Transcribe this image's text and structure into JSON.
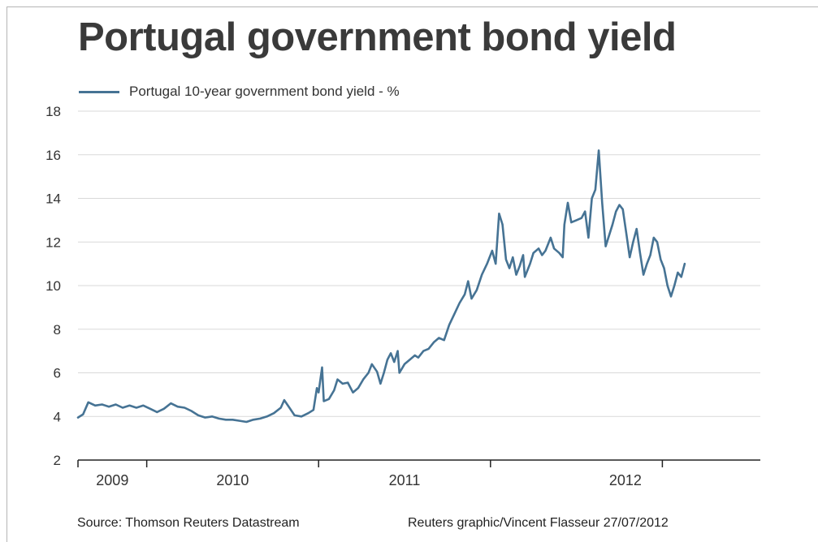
{
  "title": "Portugal government bond yield",
  "footer": {
    "source": "Source: Thomson Reuters Datastream",
    "credit": "Reuters graphic/Vincent Flasseur 27/07/2012"
  },
  "colors": {
    "line": "#467394",
    "grid": "#d9d9d9",
    "axis": "#333333"
  },
  "chart_data": {
    "type": "line",
    "title": "Portugal government bond yield",
    "xlabel": "",
    "ylabel": "",
    "ylim": [
      2,
      18
    ],
    "y_ticks": [
      2,
      4,
      6,
      8,
      10,
      12,
      14,
      16,
      18
    ],
    "x_range": [
      2008.6,
      2012.57
    ],
    "x_tick_labels": [
      "2009",
      "2010",
      "2011",
      "2012"
    ],
    "grid": true,
    "legend": "top-left",
    "series": [
      {
        "name": "Portugal 10-year government bond yield - %",
        "points": [
          [
            2008.6,
            3.95
          ],
          [
            2008.63,
            4.1
          ],
          [
            2008.66,
            4.65
          ],
          [
            2008.7,
            4.5
          ],
          [
            2008.74,
            4.55
          ],
          [
            2008.78,
            4.45
          ],
          [
            2008.82,
            4.55
          ],
          [
            2008.86,
            4.4
          ],
          [
            2008.9,
            4.5
          ],
          [
            2008.94,
            4.4
          ],
          [
            2008.98,
            4.5
          ],
          [
            2009.02,
            4.35
          ],
          [
            2009.06,
            4.2
          ],
          [
            2009.1,
            4.35
          ],
          [
            2009.14,
            4.6
          ],
          [
            2009.18,
            4.45
          ],
          [
            2009.22,
            4.4
          ],
          [
            2009.26,
            4.25
          ],
          [
            2009.3,
            4.05
          ],
          [
            2009.34,
            3.95
          ],
          [
            2009.38,
            4.0
          ],
          [
            2009.42,
            3.9
          ],
          [
            2009.46,
            3.85
          ],
          [
            2009.5,
            3.85
          ],
          [
            2009.54,
            3.8
          ],
          [
            2009.58,
            3.75
          ],
          [
            2009.62,
            3.85
          ],
          [
            2009.66,
            3.9
          ],
          [
            2009.7,
            4.0
          ],
          [
            2009.74,
            4.15
          ],
          [
            2009.78,
            4.4
          ],
          [
            2009.8,
            4.75
          ],
          [
            2009.83,
            4.4
          ],
          [
            2009.86,
            4.05
          ],
          [
            2009.9,
            4.0
          ],
          [
            2009.94,
            4.15
          ],
          [
            2009.97,
            4.3
          ],
          [
            2009.99,
            5.3
          ],
          [
            2010.0,
            5.1
          ],
          [
            2010.02,
            6.25
          ],
          [
            2010.03,
            4.7
          ],
          [
            2010.06,
            4.8
          ],
          [
            2010.09,
            5.2
          ],
          [
            2010.11,
            5.7
          ],
          [
            2010.14,
            5.5
          ],
          [
            2010.17,
            5.55
          ],
          [
            2010.2,
            5.1
          ],
          [
            2010.23,
            5.3
          ],
          [
            2010.26,
            5.7
          ],
          [
            2010.29,
            6.0
          ],
          [
            2010.31,
            6.4
          ],
          [
            2010.34,
            6.05
          ],
          [
            2010.36,
            5.5
          ],
          [
            2010.38,
            6.0
          ],
          [
            2010.4,
            6.6
          ],
          [
            2010.42,
            6.9
          ],
          [
            2010.44,
            6.5
          ],
          [
            2010.46,
            7.0
          ],
          [
            2010.47,
            6.0
          ],
          [
            2010.5,
            6.4
          ],
          [
            2010.53,
            6.6
          ],
          [
            2010.56,
            6.8
          ],
          [
            2010.58,
            6.7
          ],
          [
            2010.61,
            7.0
          ],
          [
            2010.64,
            7.1
          ],
          [
            2010.67,
            7.4
          ],
          [
            2010.7,
            7.6
          ],
          [
            2010.73,
            7.5
          ],
          [
            2010.76,
            8.2
          ],
          [
            2010.79,
            8.7
          ],
          [
            2010.82,
            9.2
          ],
          [
            2010.85,
            9.6
          ],
          [
            2010.87,
            10.2
          ],
          [
            2010.89,
            9.4
          ],
          [
            2010.92,
            9.8
          ],
          [
            2010.95,
            10.5
          ],
          [
            2010.98,
            11.0
          ],
          [
            2011.01,
            11.6
          ],
          [
            2011.03,
            11.0
          ],
          [
            2011.05,
            13.3
          ],
          [
            2011.07,
            12.8
          ],
          [
            2011.09,
            11.2
          ],
          [
            2011.11,
            10.8
          ],
          [
            2011.13,
            11.3
          ],
          [
            2011.15,
            10.5
          ],
          [
            2011.17,
            10.9
          ],
          [
            2011.19,
            11.4
          ],
          [
            2011.2,
            10.4
          ],
          [
            2011.23,
            11.0
          ],
          [
            2011.25,
            11.5
          ],
          [
            2011.28,
            11.7
          ],
          [
            2011.3,
            11.4
          ],
          [
            2011.32,
            11.6
          ],
          [
            2011.35,
            12.2
          ],
          [
            2011.37,
            11.7
          ],
          [
            2011.4,
            11.5
          ],
          [
            2011.42,
            11.3
          ],
          [
            2011.43,
            12.8
          ],
          [
            2011.45,
            13.8
          ],
          [
            2011.47,
            12.9
          ],
          [
            2011.5,
            13.0
          ],
          [
            2011.53,
            13.1
          ],
          [
            2011.55,
            13.4
          ],
          [
            2011.57,
            12.2
          ],
          [
            2011.59,
            14.0
          ],
          [
            2011.61,
            14.4
          ],
          [
            2011.63,
            16.2
          ],
          [
            2011.65,
            13.8
          ],
          [
            2011.67,
            11.8
          ],
          [
            2011.69,
            12.3
          ],
          [
            2011.71,
            12.8
          ],
          [
            2011.73,
            13.4
          ],
          [
            2011.75,
            13.7
          ],
          [
            2011.77,
            13.5
          ],
          [
            2011.79,
            12.4
          ],
          [
            2011.81,
            11.3
          ],
          [
            2011.83,
            12.0
          ],
          [
            2011.85,
            12.6
          ],
          [
            2011.87,
            11.5
          ],
          [
            2011.89,
            10.5
          ],
          [
            2011.91,
            11.0
          ],
          [
            2011.93,
            11.4
          ],
          [
            2011.95,
            12.2
          ],
          [
            2011.97,
            12.0
          ],
          [
            2011.99,
            11.2
          ],
          [
            2012.01,
            10.8
          ],
          [
            2012.03,
            10.0
          ],
          [
            2012.05,
            9.5
          ],
          [
            2012.07,
            10.0
          ],
          [
            2012.09,
            10.6
          ],
          [
            2012.11,
            10.4
          ],
          [
            2012.13,
            11.0
          ]
        ]
      }
    ]
  }
}
